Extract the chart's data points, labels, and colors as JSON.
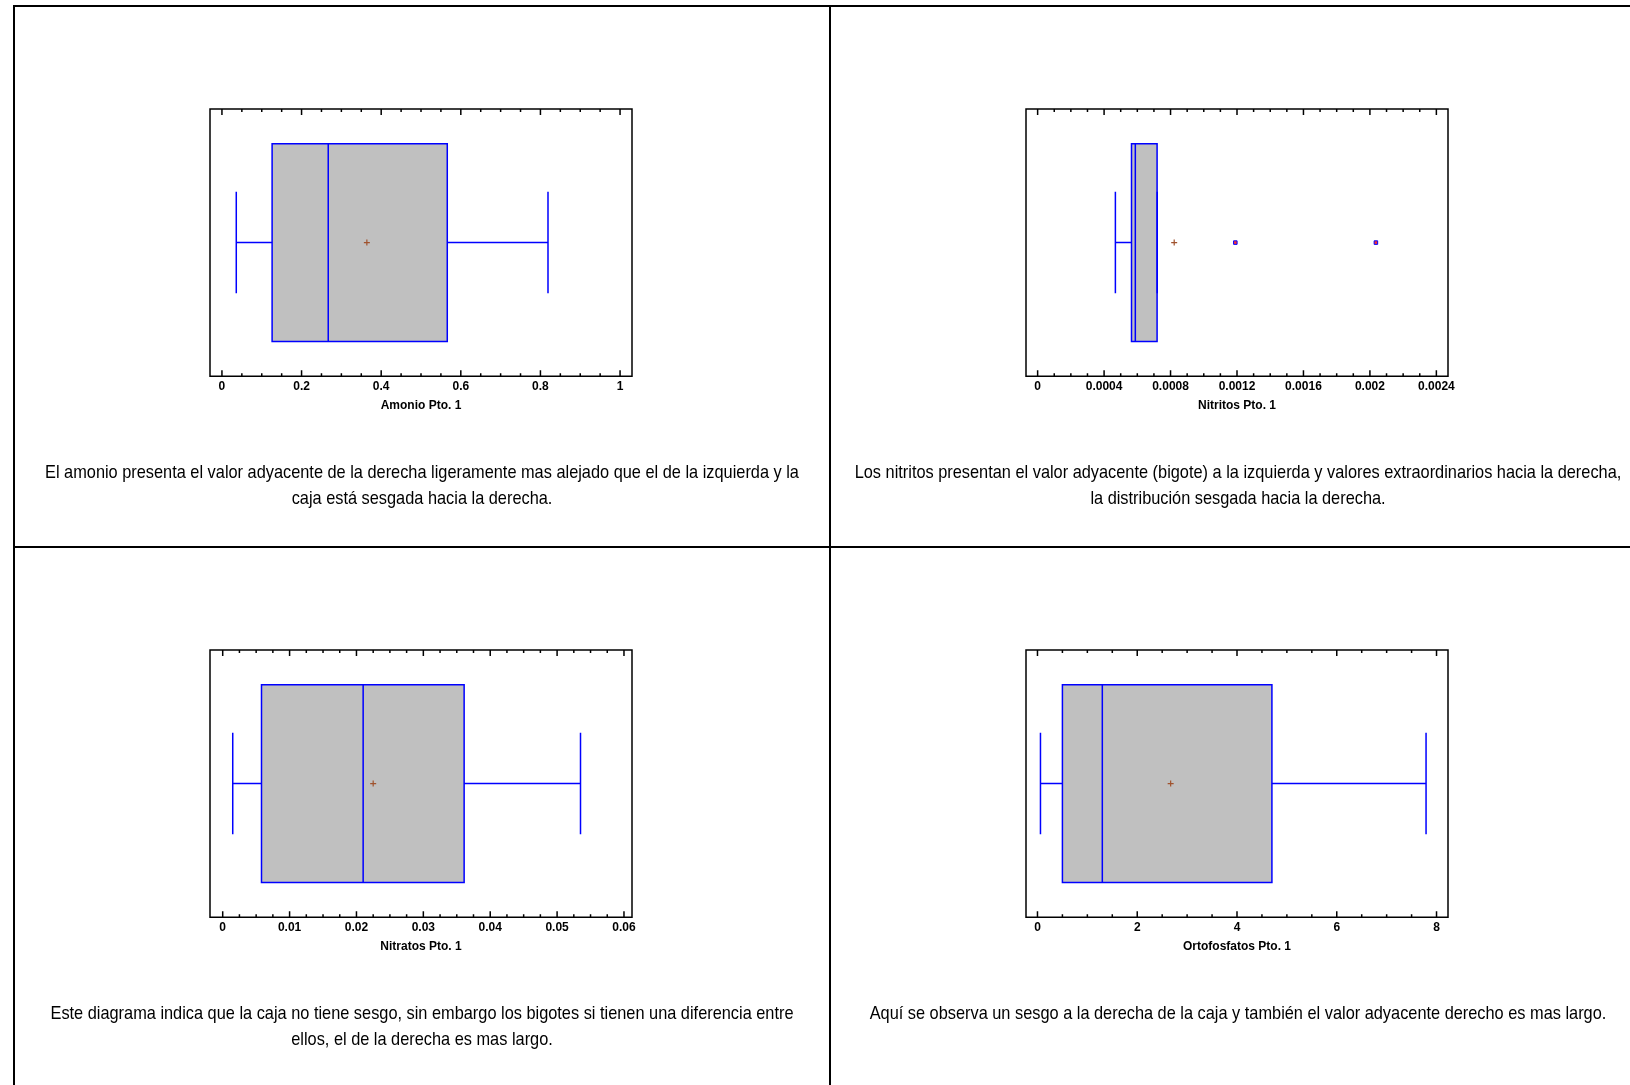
{
  "chart_data": [
    {
      "type": "box",
      "orientation": "horizontal",
      "categories": [
        null
      ],
      "color": "#c0c0c0",
      "xlabel": "Amonio Pto. 1",
      "xlim": [
        -0.03,
        1.03
      ],
      "xticks": [
        0,
        0.2,
        0.4,
        0.6,
        0.8,
        1
      ],
      "marker": "cross",
      "boxes": [
        {
          "low": 0.036,
          "q1": 0.126,
          "median": 0.267,
          "q3": 0.566,
          "high": 0.819,
          "mean": 0.364
        }
      ],
      "annotations": [
        "El amonio presenta el valor adyacente de la derecha ligeramente mas alejado que el de la izquierda y la caja está sesgada hacia la derecha."
      ]
    },
    {
      "type": "box",
      "orientation": "horizontal",
      "categories": [
        null
      ],
      "color": "#c0c0c0",
      "xlabel": "Nitritos Pto. 1",
      "xlim": [
        -7e-05,
        0.00247
      ],
      "xticks": [
        0,
        0.0004,
        0.0008,
        0.0012,
        0.0016,
        0.002,
        0.0024
      ],
      "marker": "cross",
      "boxes": [
        {
          "low": 0.000468,
          "q1": 0.000565,
          "median": 0.000588,
          "q3": 0.000719,
          "high": 0.00072,
          "mean": 0.000822,
          "outliers": [
            0.00119,
            0.002036
          ]
        }
      ],
      "annotations": [
        "Los nitritos presentan el valor  adyacente (bigote) a la izquierda y valores  extraordinarios hacia la derecha, la distribución sesgada hacia la derecha."
      ]
    },
    {
      "type": "box",
      "orientation": "horizontal",
      "categories": [
        null
      ],
      "color": "#c0c0c0",
      "xlabel": "Nitratos Pto. 1",
      "xlim": [
        -0.0019,
        0.0612
      ],
      "xticks": [
        0,
        0.01,
        0.02,
        0.03,
        0.04,
        0.05,
        0.06
      ],
      "marker": "cross",
      "boxes": [
        {
          "low": 0.0015,
          "q1": 0.0058,
          "median": 0.021,
          "q3": 0.0361,
          "high": 0.0535,
          "mean": 0.0225
        }
      ],
      "annotations": [
        "Este diagrama indica que la caja no tiene sesgo, sin embargo los bigotes si tienen una diferencia entre ellos, el de la derecha es mas largo."
      ]
    },
    {
      "type": "box",
      "orientation": "horizontal",
      "categories": [
        null
      ],
      "color": "#c0c0c0",
      "xlabel": "Ortofosfatos Pto. 1",
      "xlim": [
        -0.23,
        8.23
      ],
      "xticks": [
        0,
        2,
        4,
        6,
        8
      ],
      "marker": "cross",
      "boxes": [
        {
          "low": 0.06,
          "q1": 0.5,
          "median": 1.3,
          "q3": 4.7,
          "high": 7.79,
          "mean": 2.67
        }
      ],
      "annotations": [
        "Aquí se observa un sesgo a la derecha de la caja y también el valor adyacente derecho es mas largo."
      ]
    }
  ]
}
